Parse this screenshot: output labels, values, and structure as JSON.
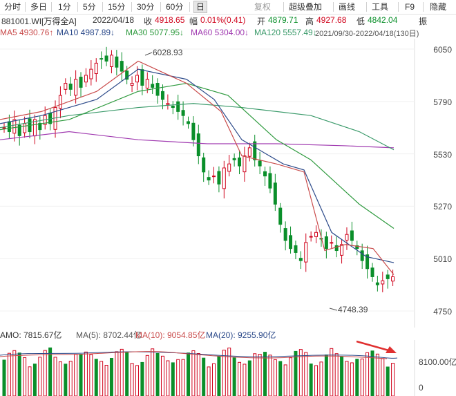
{
  "toolbar": {
    "tabs": [
      "分时",
      "多日",
      "1分",
      "5分",
      "15分",
      "30分",
      "60分",
      "日"
    ],
    "active": "日",
    "right": [
      "复权",
      "超级叠加",
      "画线",
      "工具",
      "F9",
      "隐藏"
    ]
  },
  "info": {
    "code": "881001.WI[万得全A]",
    "date": "2022/04/18",
    "close_label": "收",
    "close": "4918.65",
    "change_label": "幅",
    "change": "0.01%(0.41)",
    "open_label": "开",
    "open": "4879.71",
    "high_label": "高",
    "high": "4927.68",
    "low_label": "低",
    "low": "4842.04",
    "amp_label": "振"
  },
  "ma": {
    "ma5": "MA5 4930.76↑",
    "ma10": "MA10 4987.89↓",
    "ma30": "MA30 5077.95↓",
    "ma60": "MA60 5304.00↓",
    "ma120": "MA120 5557.49↓",
    "range": "2021/09/30-2022/04/18(130日)"
  },
  "price_axis": [
    "6050",
    "5790",
    "5530",
    "5270",
    "5010",
    "4750"
  ],
  "annotations": {
    "high": "6028.93",
    "low": "4748.39"
  },
  "volume": {
    "amo": "AMO: 7815.67亿",
    "ma5": "MA(5): 8702.44亿",
    "ma10": "MA(10): 9054.85亿",
    "ma20": "MA(20): 9255.90亿",
    "axis": "8100.00亿",
    "axis2": "0"
  },
  "colors": {
    "up": "#d0021b",
    "down": "#0a8f2a",
    "ma5": "#c94b4b",
    "ma10": "#2c4a8a",
    "ma30": "#2e9a3e",
    "ma60": "#a03ab0",
    "ma120": "#3a9a6a",
    "arrow": "#e03030"
  },
  "icons": {
    "arrow": "red-arrow-icon"
  }
}
